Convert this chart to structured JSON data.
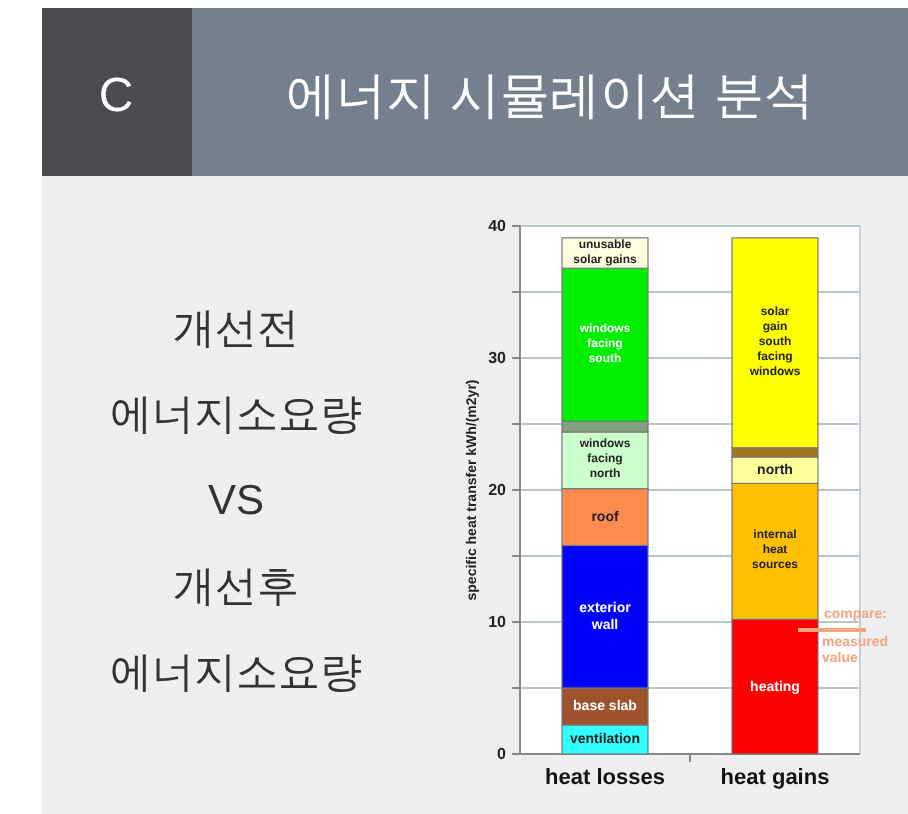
{
  "chart_data": {
    "type": "bar",
    "stacked": true,
    "title": "에너지 시뮬레이션 분석",
    "ylabel": "specific heat transfer kWh/(m2yr)",
    "categories": [
      "heat losses",
      "heat gains"
    ],
    "ylim": [
      0,
      40
    ],
    "yticks": [
      0,
      {
        "value": 5,
        "label": null
      },
      10,
      {
        "value": 15,
        "label": null
      },
      20,
      {
        "value": 25,
        "label": null
      },
      30,
      {
        "value": 35,
        "label": null
      },
      40
    ],
    "grid": "y",
    "series": [
      {
        "name": "ventilation",
        "color": "#33ffff",
        "values": [
          2.2,
          null
        ]
      },
      {
        "name": "base slab",
        "color": "#a0522d",
        "values": [
          2.8,
          null
        ]
      },
      {
        "name": "exterior\nwall",
        "color": "#0000ff",
        "values": [
          10.8,
          null
        ]
      },
      {
        "name": "roof",
        "color": "#ff8c4c",
        "values": [
          4.3,
          null
        ]
      },
      {
        "name": "windows\nfacing\nnorth",
        "color": "#ccffcc",
        "values": [
          4.3,
          null
        ]
      },
      {
        "color": "#80a080",
        "values": [
          0.8,
          null
        ]
      },
      {
        "name": "windows\nfacing\nsouth",
        "color": "#00ee00",
        "values": [
          11.6,
          null
        ]
      },
      {
        "name": "unusable\nsolar gains",
        "color": "#ffffe0",
        "values": [
          2.3,
          null
        ]
      },
      {
        "name": "heating",
        "color": "#ff0000",
        "values": [
          null,
          10.2
        ]
      },
      {
        "name": "internal\nheat\nsources",
        "color": "#ffc000",
        "values": [
          null,
          10.3
        ]
      },
      {
        "name": "north",
        "color": "#ffff99",
        "values": [
          null,
          2.0
        ]
      },
      {
        "color": "#a07820",
        "values": [
          null,
          0.7
        ]
      },
      {
        "name": "solar\ngain\nsouth\nfacing\nwindows",
        "color": "#ffff00",
        "values": [
          null,
          15.9
        ]
      }
    ],
    "annotations": [
      "C",
      "개선전\n에너지소요량\nVS\n개선후\n에너지소요량",
      "compare:\nmeasured value"
    ]
  }
}
